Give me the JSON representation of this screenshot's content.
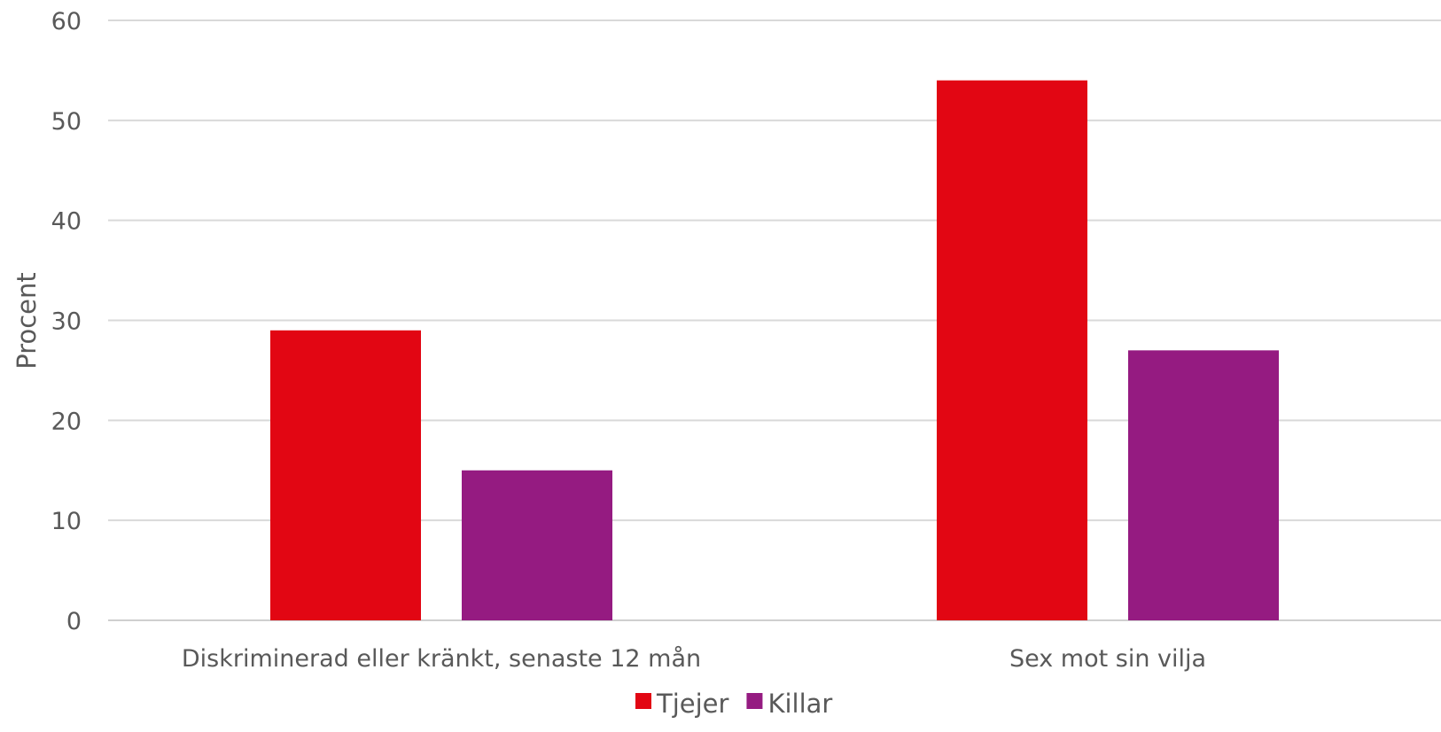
{
  "chart_data": {
    "type": "bar",
    "title": "",
    "xlabel": "",
    "ylabel": "Procent",
    "ylim": [
      0,
      60
    ],
    "yticks": [
      0,
      10,
      20,
      30,
      40,
      50,
      60
    ],
    "grid": true,
    "legend_position": "bottom",
    "categories": [
      "Diskriminerad eller kränkt, senaste 12 mån",
      "Sex mot sin vilja"
    ],
    "series": [
      {
        "name": "Tjejer",
        "color": "#e20613",
        "values": [
          29,
          54
        ]
      },
      {
        "name": "Killar",
        "color": "#951b81",
        "values": [
          15,
          27
        ]
      }
    ]
  }
}
